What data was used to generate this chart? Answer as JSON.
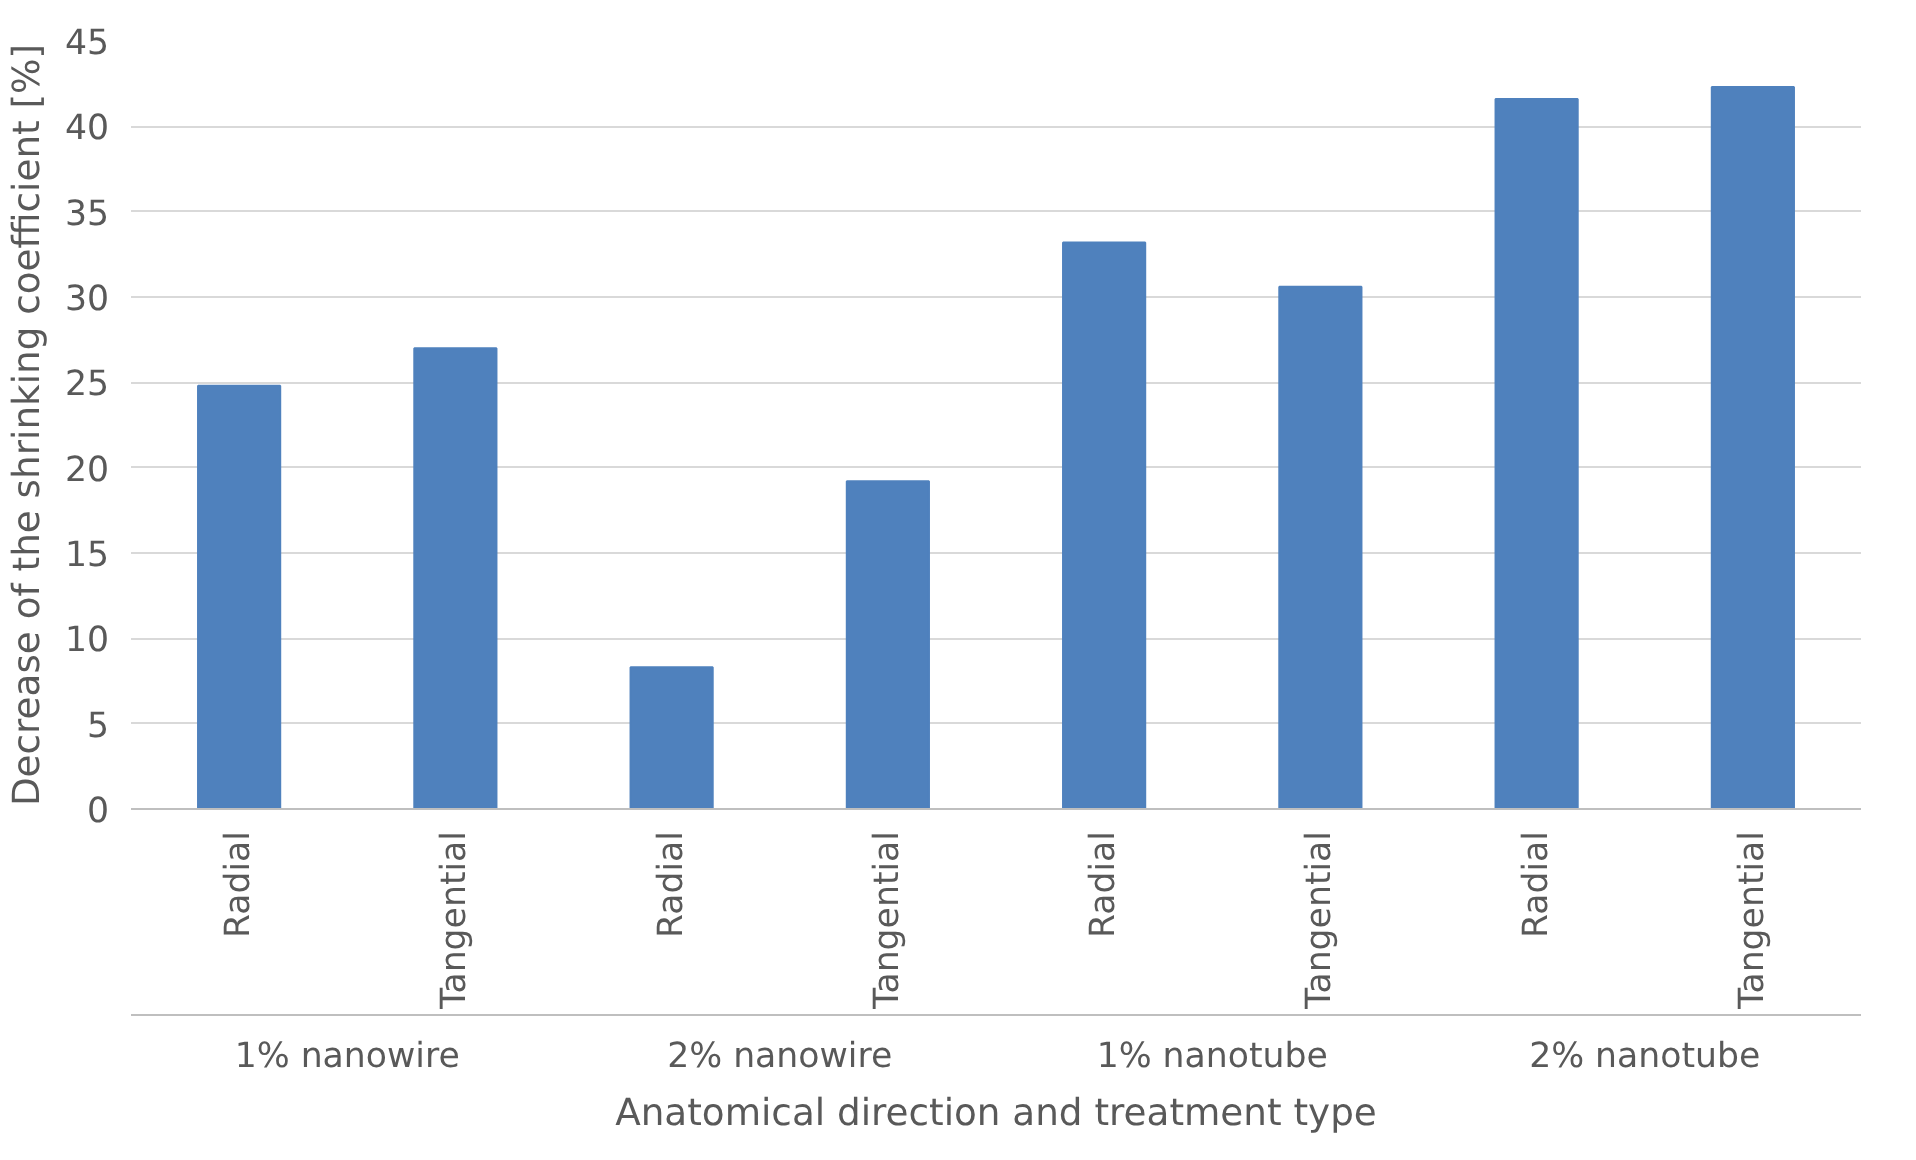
{
  "chart_data": {
    "type": "bar",
    "xlabel": "Anatomical direction and treatment type",
    "ylabel": "Decrease of the shrinking coefficient [%]",
    "categories": [
      "Radial",
      "Tangential",
      "Radial",
      "Tangential",
      "Radial",
      "Tangential",
      "Radial",
      "Tangential"
    ],
    "annotations": [
      "1% nanowire",
      "2% nanowire",
      "1% nanotube",
      "2% nanotube"
    ],
    "values": [
      24.8,
      27,
      8.3,
      19.2,
      33.2,
      30.6,
      41.6,
      42.3
    ],
    "color": "#4f81bd",
    "ylim": [
      0,
      45
    ],
    "yticks": [
      0,
      5,
      10,
      15,
      20,
      25,
      30,
      35,
      40,
      45
    ],
    "grid": "y"
  }
}
